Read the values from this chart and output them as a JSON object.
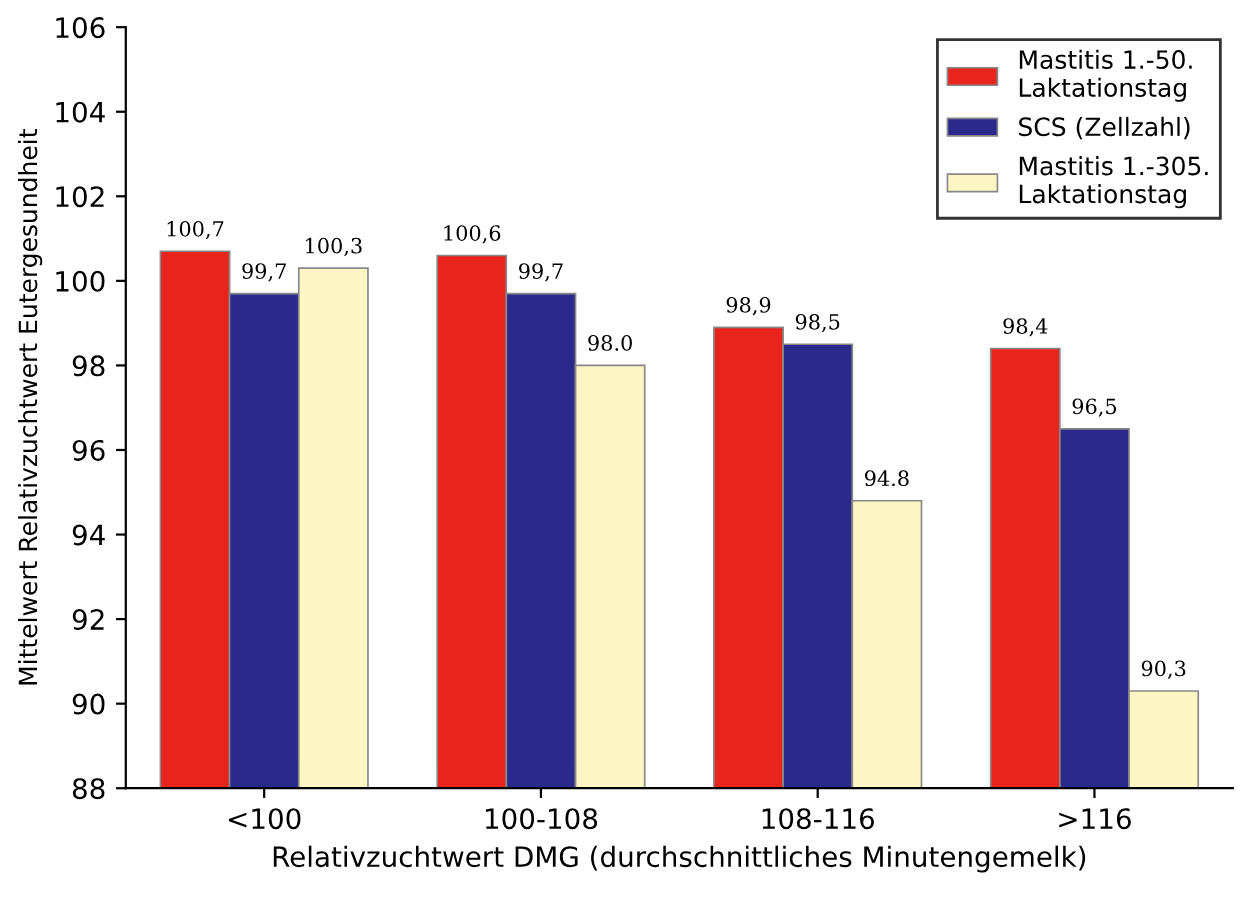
{
  "chart_data": {
    "type": "bar",
    "xlabel": "Relativzuchtwert DMG (durchschnittliches Minutengemelk)",
    "ylabel": "Mittelwert Relativzuchtwert Eutergesundheit",
    "categories": [
      "<100",
      "100-108",
      "108-116",
      ">116"
    ],
    "series": [
      {
        "name": "Mastitis 1.-50.\nLaktationstag",
        "color": "#e8241c",
        "values": [
          100.7,
          100.6,
          98.9,
          98.4
        ],
        "value_labels": [
          "100,7",
          "100,6",
          "98,9",
          "98,4"
        ]
      },
      {
        "name": "SCS (Zellzahl)",
        "color": "#2b2a8c",
        "values": [
          99.7,
          99.7,
          98.5,
          96.5
        ],
        "value_labels": [
          "99,7",
          "99,7",
          "98,5",
          "96,5"
        ]
      },
      {
        "name": "Mastitis 1.-305.\nLaktationstag",
        "color": "#fcf5c4",
        "values": [
          100.3,
          98.0,
          94.8,
          90.3
        ],
        "value_labels": [
          "100,3",
          "98.0",
          "94.8",
          "90,3"
        ]
      }
    ],
    "ylim": [
      88,
      106
    ],
    "yticks": [
      88,
      90,
      92,
      94,
      96,
      98,
      100,
      102,
      104,
      106
    ],
    "grid": false,
    "legend": "top right"
  }
}
